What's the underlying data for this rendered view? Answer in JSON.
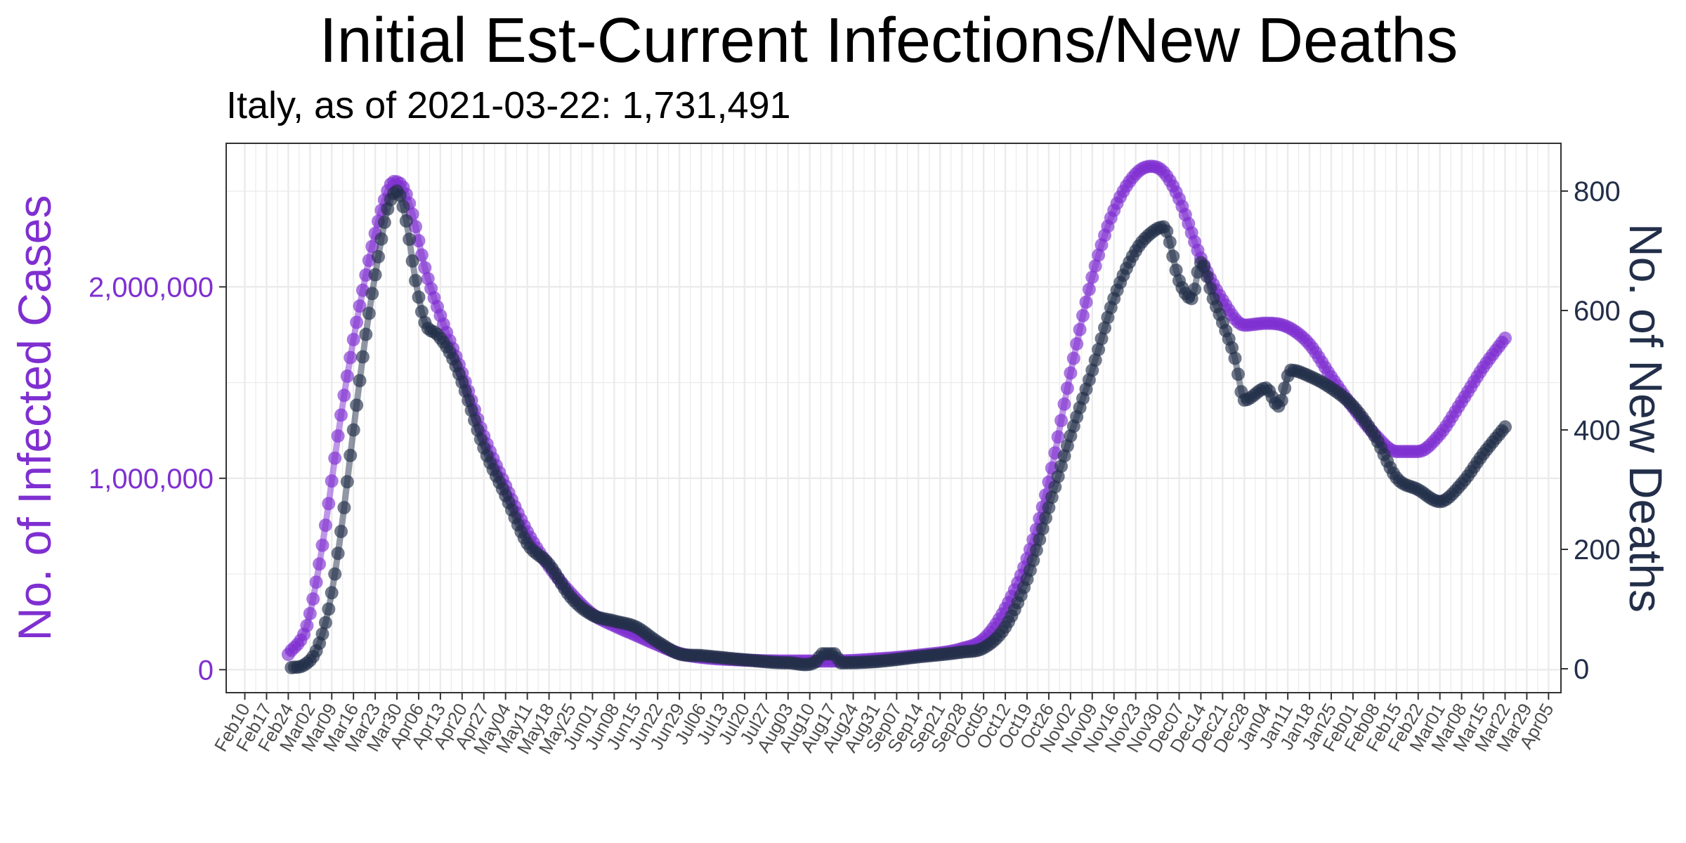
{
  "chart_data": {
    "type": "line",
    "title": "Initial Est-Current Infections/New Deaths",
    "subtitle": "Italy, as of 2021-03-22:  1,731,491",
    "ylabel_left": "No. of Infected Cases",
    "ylabel_right": "No. of New Deaths",
    "colors": {
      "infected": "#7f2fd1",
      "deaths": "#232f49",
      "left_axis_text": "#7f2fd1",
      "right_axis_text": "#232f49",
      "grid": "#ebebeb",
      "panel_border": "#333333"
    },
    "grid": true,
    "legend": "none",
    "x_domain": [
      "2020-02-04",
      "2021-04-09"
    ],
    "x_ticks": [
      "Feb10",
      "Feb17",
      "Feb24",
      "Mar02",
      "Mar09",
      "Mar16",
      "Mar23",
      "Mar30",
      "Apr06",
      "Apr13",
      "Apr20",
      "Apr27",
      "May04",
      "May11",
      "May18",
      "May25",
      "Jun01",
      "Jun08",
      "Jun15",
      "Jun22",
      "Jun29",
      "Jul06",
      "Jul13",
      "Jul20",
      "Jul27",
      "Aug03",
      "Aug10",
      "Aug17",
      "Aug24",
      "Aug31",
      "Sep07",
      "Sep14",
      "Sep21",
      "Sep28",
      "Oct05",
      "Oct12",
      "Oct19",
      "Oct26",
      "Nov02",
      "Nov09",
      "Nov16",
      "Nov23",
      "Nov30",
      "Dec07",
      "Dec14",
      "Dec21",
      "Dec28",
      "Jan04",
      "Jan11",
      "Jan18",
      "Jan25",
      "Feb01",
      "Feb08",
      "Feb15",
      "Feb22",
      "Mar01",
      "Mar08",
      "Mar15",
      "Mar22",
      "Mar29",
      "Apr05"
    ],
    "y_left": {
      "range": [
        -120000,
        2750000
      ],
      "ticks": [
        0,
        1000000,
        2000000
      ],
      "tick_labels": [
        "0",
        "1,000,000",
        "2,000,000"
      ]
    },
    "y_right": {
      "range": [
        -40,
        880
      ],
      "ticks": [
        0,
        200,
        400,
        600,
        800
      ],
      "tick_labels": [
        "0",
        "200",
        "400",
        "600",
        "800"
      ]
    },
    "series": [
      {
        "key": "infected",
        "axis": "left",
        "start": "2020-02-24",
        "end": "2021-03-22",
        "anchors": [
          [
            "2020-02-24",
            80000
          ],
          [
            "2020-03-01",
            230000
          ],
          [
            "2020-03-06",
            650000
          ],
          [
            "2020-03-12",
            1330000
          ],
          [
            "2020-03-18",
            1900000
          ],
          [
            "2020-03-25",
            2400000
          ],
          [
            "2020-03-29",
            2550000
          ],
          [
            "2020-04-01",
            2520000
          ],
          [
            "2020-04-04",
            2380000
          ],
          [
            "2020-04-08",
            2100000
          ],
          [
            "2020-04-13",
            1850000
          ],
          [
            "2020-04-20",
            1550000
          ],
          [
            "2020-04-27",
            1220000
          ],
          [
            "2020-05-04",
            960000
          ],
          [
            "2020-05-11",
            720000
          ],
          [
            "2020-05-18",
            540000
          ],
          [
            "2020-05-25",
            400000
          ],
          [
            "2020-06-01",
            290000
          ],
          [
            "2020-06-08",
            230000
          ],
          [
            "2020-06-15",
            180000
          ],
          [
            "2020-06-22",
            130000
          ],
          [
            "2020-06-29",
            85000
          ],
          [
            "2020-07-06",
            65000
          ],
          [
            "2020-07-20",
            50000
          ],
          [
            "2020-08-03",
            45000
          ],
          [
            "2020-08-17",
            45000
          ],
          [
            "2020-08-31",
            55000
          ],
          [
            "2020-09-14",
            75000
          ],
          [
            "2020-09-28",
            110000
          ],
          [
            "2020-10-05",
            160000
          ],
          [
            "2020-10-12",
            320000
          ],
          [
            "2020-10-19",
            580000
          ],
          [
            "2020-10-26",
            980000
          ],
          [
            "2020-11-02",
            1550000
          ],
          [
            "2020-11-09",
            2050000
          ],
          [
            "2020-11-16",
            2400000
          ],
          [
            "2020-11-23",
            2590000
          ],
          [
            "2020-11-28",
            2630000
          ],
          [
            "2020-12-02",
            2600000
          ],
          [
            "2020-12-07",
            2460000
          ],
          [
            "2020-12-14",
            2150000
          ],
          [
            "2020-12-21",
            1930000
          ],
          [
            "2020-12-28",
            1800000
          ],
          [
            "2021-01-04",
            1810000
          ],
          [
            "2021-01-11",
            1790000
          ],
          [
            "2021-01-18",
            1700000
          ],
          [
            "2021-01-25",
            1530000
          ],
          [
            "2021-02-01",
            1370000
          ],
          [
            "2021-02-08",
            1230000
          ],
          [
            "2021-02-15",
            1140000
          ],
          [
            "2021-02-22",
            1140000
          ],
          [
            "2021-03-01",
            1230000
          ],
          [
            "2021-03-08",
            1400000
          ],
          [
            "2021-03-15",
            1580000
          ],
          [
            "2021-03-22",
            1731491
          ]
        ]
      },
      {
        "key": "deaths",
        "axis": "right",
        "start": "2020-02-25",
        "end": "2021-03-22",
        "anchors": [
          [
            "2020-02-25",
            2
          ],
          [
            "2020-02-29",
            6
          ],
          [
            "2020-03-04",
            30
          ],
          [
            "2020-03-08",
            100
          ],
          [
            "2020-03-12",
            230
          ],
          [
            "2020-03-16",
            400
          ],
          [
            "2020-03-20",
            560
          ],
          [
            "2020-03-24",
            690
          ],
          [
            "2020-03-27",
            770
          ],
          [
            "2020-03-30",
            800
          ],
          [
            "2020-04-02",
            750
          ],
          [
            "2020-04-05",
            650
          ],
          [
            "2020-04-08",
            580
          ],
          [
            "2020-04-12",
            560
          ],
          [
            "2020-04-16",
            530
          ],
          [
            "2020-04-20",
            480
          ],
          [
            "2020-04-27",
            370
          ],
          [
            "2020-05-04",
            290
          ],
          [
            "2020-05-11",
            210
          ],
          [
            "2020-05-18",
            175
          ],
          [
            "2020-05-25",
            120
          ],
          [
            "2020-06-01",
            90
          ],
          [
            "2020-06-08",
            80
          ],
          [
            "2020-06-15",
            70
          ],
          [
            "2020-06-22",
            45
          ],
          [
            "2020-06-29",
            25
          ],
          [
            "2020-07-06",
            22
          ],
          [
            "2020-07-20",
            15
          ],
          [
            "2020-08-03",
            10
          ],
          [
            "2020-08-12",
            12
          ],
          [
            "2020-08-14",
            25
          ],
          [
            "2020-08-18",
            25
          ],
          [
            "2020-08-20",
            10
          ],
          [
            "2020-08-31",
            12
          ],
          [
            "2020-09-14",
            20
          ],
          [
            "2020-09-28",
            28
          ],
          [
            "2020-10-05",
            35
          ],
          [
            "2020-10-12",
            70
          ],
          [
            "2020-10-19",
            150
          ],
          [
            "2020-10-26",
            270
          ],
          [
            "2020-11-02",
            390
          ],
          [
            "2020-11-09",
            500
          ],
          [
            "2020-11-16",
            620
          ],
          [
            "2020-11-23",
            700
          ],
          [
            "2020-11-28",
            730
          ],
          [
            "2020-12-02",
            740
          ],
          [
            "2020-12-07",
            650
          ],
          [
            "2020-12-11",
            620
          ],
          [
            "2020-12-14",
            680
          ],
          [
            "2020-12-18",
            620
          ],
          [
            "2020-12-21",
            580
          ],
          [
            "2020-12-25",
            520
          ],
          [
            "2020-12-28",
            450
          ],
          [
            "2021-01-04",
            470
          ],
          [
            "2021-01-08",
            440
          ],
          [
            "2021-01-12",
            500
          ],
          [
            "2021-01-18",
            490
          ],
          [
            "2021-01-25",
            470
          ],
          [
            "2021-02-01",
            440
          ],
          [
            "2021-02-08",
            390
          ],
          [
            "2021-02-15",
            320
          ],
          [
            "2021-02-22",
            300
          ],
          [
            "2021-03-01",
            280
          ],
          [
            "2021-03-08",
            310
          ],
          [
            "2021-03-15",
            360
          ],
          [
            "2021-03-22",
            405
          ]
        ]
      }
    ]
  }
}
